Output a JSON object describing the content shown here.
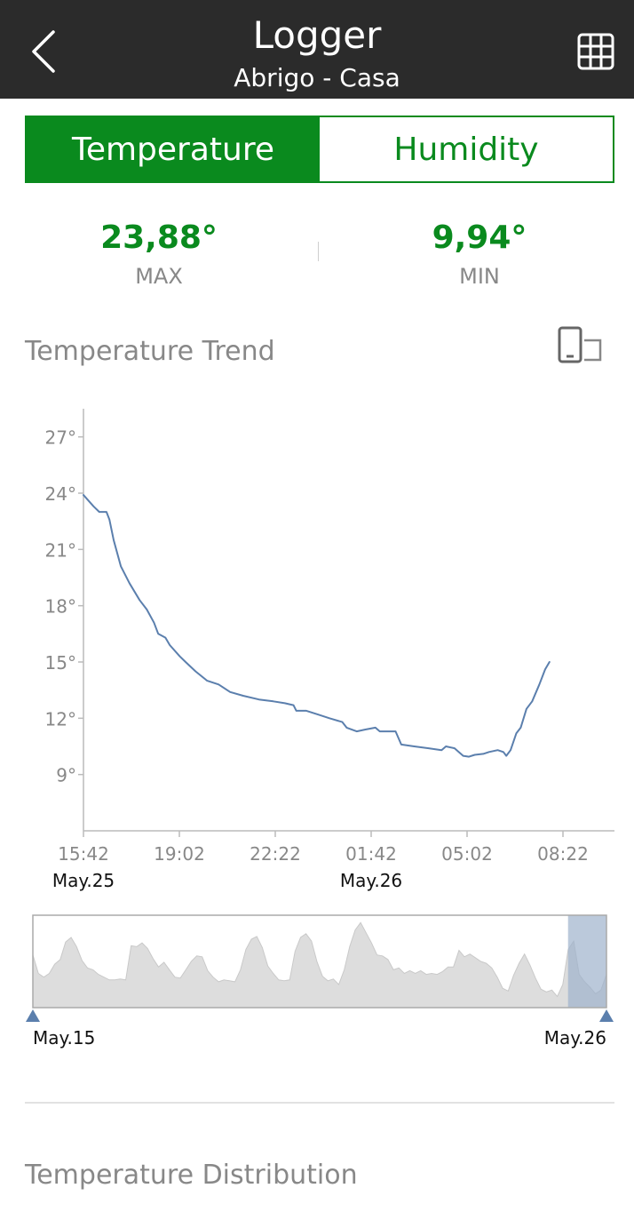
{
  "header": {
    "title": "Logger",
    "subtitle": "Abrigo - Casa",
    "back_icon": "chevron-left-icon",
    "table_icon": "table-grid-icon"
  },
  "tabs": [
    {
      "label": "Temperature",
      "active": true
    },
    {
      "label": "Humidity",
      "active": false
    }
  ],
  "stats": {
    "max": {
      "value": "23,88°",
      "label": "MAX"
    },
    "min": {
      "value": "9,94°",
      "label": "MIN"
    }
  },
  "trend": {
    "title": "Temperature Trend",
    "rotate_icon": "rotate-device-icon"
  },
  "chart_data": [
    {
      "type": "line",
      "ylim": [
        6,
        28.5
      ],
      "y_ticks": [
        9,
        12,
        15,
        18,
        21,
        24,
        27
      ],
      "y_tick_labels": [
        "9°",
        "12°",
        "15°",
        "18°",
        "21°",
        "24°",
        "27°"
      ],
      "x_tick_labels": [
        "15:42",
        "19:02",
        "22:22",
        "01:42",
        "05:02",
        "08:22"
      ],
      "x_date_labels": [
        {
          "label": "May.25",
          "at_tick": 0
        },
        {
          "label": "May.26",
          "at_tick": 3
        }
      ],
      "x_range_hours": [
        0,
        16.67
      ],
      "series": [
        {
          "color": "#5b7fad",
          "points": [
            [
              0,
              23.9
            ],
            [
              0.35,
              23.3
            ],
            [
              0.55,
              23.0
            ],
            [
              0.8,
              23.0
            ],
            [
              0.9,
              22.6
            ],
            [
              1.05,
              21.5
            ],
            [
              1.3,
              20.1
            ],
            [
              1.6,
              19.2
            ],
            [
              1.95,
              18.3
            ],
            [
              2.2,
              17.8
            ],
            [
              2.45,
              17.1
            ],
            [
              2.6,
              16.5
            ],
            [
              2.85,
              16.3
            ],
            [
              3.0,
              15.9
            ],
            [
              3.35,
              15.3
            ],
            [
              3.55,
              15.0
            ],
            [
              3.9,
              14.5
            ],
            [
              4.3,
              14.0
            ],
            [
              4.7,
              13.8
            ],
            [
              5.1,
              13.4
            ],
            [
              5.55,
              13.2
            ],
            [
              6.1,
              13.0
            ],
            [
              6.6,
              12.9
            ],
            [
              7.0,
              12.8
            ],
            [
              7.3,
              12.7
            ],
            [
              7.4,
              12.4
            ],
            [
              7.75,
              12.4
            ],
            [
              8.15,
              12.2
            ],
            [
              8.55,
              12.0
            ],
            [
              9.0,
              11.8
            ],
            [
              9.15,
              11.5
            ],
            [
              9.5,
              11.3
            ],
            [
              9.8,
              11.4
            ],
            [
              10.15,
              11.5
            ],
            [
              10.3,
              11.3
            ],
            [
              10.85,
              11.3
            ],
            [
              11.05,
              10.6
            ],
            [
              11.5,
              10.5
            ],
            [
              12.0,
              10.4
            ],
            [
              12.45,
              10.3
            ],
            [
              12.6,
              10.5
            ],
            [
              12.9,
              10.4
            ],
            [
              13.2,
              10.0
            ],
            [
              13.4,
              9.95
            ],
            [
              13.6,
              10.05
            ],
            [
              13.9,
              10.1
            ],
            [
              14.1,
              10.2
            ],
            [
              14.4,
              10.3
            ],
            [
              14.6,
              10.2
            ],
            [
              14.7,
              10.0
            ],
            [
              14.85,
              10.3
            ],
            [
              15.05,
              11.2
            ],
            [
              15.2,
              11.5
            ],
            [
              15.4,
              12.5
            ],
            [
              15.6,
              12.9
            ],
            [
              15.85,
              13.8
            ],
            [
              16.05,
              14.6
            ],
            [
              16.2,
              15.0
            ]
          ]
        }
      ]
    },
    {
      "type": "area",
      "date_labels": [
        "May.15",
        "May.26"
      ],
      "range_selected_fraction": [
        0.933,
        1.0
      ],
      "series": [
        {
          "color": "#dddddd",
          "values": [
            0.57,
            0.37,
            0.33,
            0.37,
            0.47,
            0.52,
            0.71,
            0.76,
            0.66,
            0.51,
            0.43,
            0.41,
            0.36,
            0.33,
            0.3,
            0.3,
            0.31,
            0.3,
            0.67,
            0.66,
            0.7,
            0.64,
            0.53,
            0.44,
            0.49,
            0.41,
            0.33,
            0.32,
            0.41,
            0.5,
            0.56,
            0.55,
            0.4,
            0.33,
            0.28,
            0.3,
            0.29,
            0.28,
            0.41,
            0.63,
            0.74,
            0.77,
            0.65,
            0.45,
            0.37,
            0.3,
            0.29,
            0.3,
            0.61,
            0.76,
            0.8,
            0.72,
            0.5,
            0.34,
            0.29,
            0.31,
            0.25,
            0.41,
            0.66,
            0.84,
            0.92,
            0.81,
            0.7,
            0.57,
            0.56,
            0.52,
            0.41,
            0.43,
            0.37,
            0.4,
            0.37,
            0.4,
            0.36,
            0.37,
            0.36,
            0.39,
            0.44,
            0.44,
            0.62,
            0.55,
            0.58,
            0.54,
            0.5,
            0.48,
            0.43,
            0.33,
            0.21,
            0.18,
            0.35,
            0.48,
            0.58,
            0.46,
            0.32,
            0.2,
            0.17,
            0.19,
            0.12,
            0.25,
            0.63,
            0.72,
            0.36,
            0.28,
            0.22,
            0.15,
            0.19,
            0.36
          ]
        }
      ]
    }
  ],
  "distribution": {
    "title": "Temperature Distribution"
  },
  "colors": {
    "header_bg": "#2b2b2b",
    "accent_green": "#0a8a1e",
    "line": "#5b7fad",
    "overview_fill": "#dddddd",
    "overview_selection": "#9eb2cc"
  }
}
